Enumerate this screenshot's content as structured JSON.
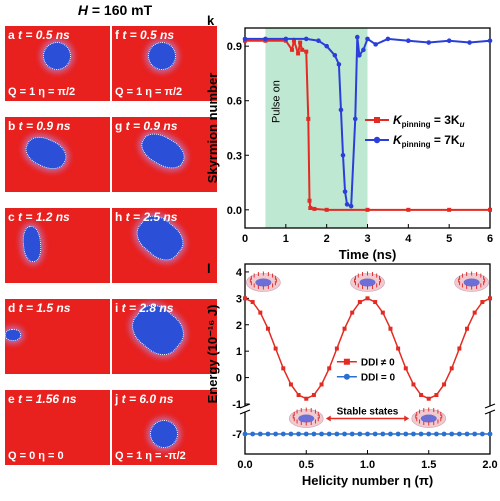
{
  "figure_title": "H = 160 mT",
  "field_label": "H",
  "field_value": "= 160 mT",
  "snapshots": [
    {
      "panel": "a",
      "time": "t = 0.5 ns",
      "q": "Q = 1  η = π/2"
    },
    {
      "panel": "f",
      "time": "t = 0.5 ns",
      "q": "Q = 1  η = π/2"
    },
    {
      "panel": "b",
      "time": "t = 0.9 ns",
      "q": ""
    },
    {
      "panel": "g",
      "time": "t = 0.9 ns",
      "q": ""
    },
    {
      "panel": "c",
      "time": "t = 1.2 ns",
      "q": ""
    },
    {
      "panel": "h",
      "time": "t = 2.5 ns",
      "q": ""
    },
    {
      "panel": "d",
      "time": "t = 1.5 ns",
      "q": ""
    },
    {
      "panel": "i",
      "time": "t = 2.8 ns",
      "q": ""
    },
    {
      "panel": "e",
      "time": "t = 1.56 ns",
      "q": "Q = 0  η = 0"
    },
    {
      "panel": "j",
      "time": "t = 6.0 ns",
      "q": "Q = 1  η = -π/2"
    }
  ],
  "colors": {
    "background_red": "#e8201e",
    "skyrmion_blue": "#2b4fd6",
    "pulse_green": "#bfe8d2",
    "series_red": "#e32b23",
    "series_blue": "#2a3fd9"
  },
  "chart_data": [
    {
      "type": "line",
      "panel": "k",
      "xlabel": "Time (ns)",
      "ylabel": "Skyrmion number",
      "xlim": [
        0,
        6
      ],
      "ylim": [
        -0.1,
        1.0
      ],
      "xticks": [
        0,
        1,
        2,
        3,
        4,
        5,
        6
      ],
      "yticks": [
        0.0,
        0.3,
        0.6,
        0.9
      ],
      "annotation": "Pulse on",
      "pulse_region": [
        0.5,
        3.0
      ],
      "legend_position": "center-right",
      "series": [
        {
          "name": "K_pinning = 3K_u",
          "name_main": "K",
          "name_sub": "pinning",
          "name_rest": " = 3K",
          "name_sub2": "u",
          "color": "#e32b23",
          "x": [
            0,
            0.5,
            1.0,
            1.15,
            1.2,
            1.3,
            1.35,
            1.4,
            1.5,
            1.55,
            1.58,
            1.6,
            1.7,
            2.0,
            3.0,
            4.0,
            5.0,
            6.0
          ],
          "y": [
            0.93,
            0.93,
            0.93,
            0.88,
            0.93,
            0.86,
            0.92,
            0.88,
            0.87,
            0.5,
            0.05,
            0.01,
            0.005,
            0.0,
            0.0,
            0.0,
            0.0,
            0.0
          ]
        },
        {
          "name": "K_pinning = 7K_u",
          "name_main": "K",
          "name_sub": "pinning",
          "name_rest": " = 7K",
          "name_sub2": "u",
          "color": "#2a3fd9",
          "x": [
            0,
            0.5,
            1.0,
            1.5,
            1.8,
            2.0,
            2.2,
            2.3,
            2.35,
            2.4,
            2.45,
            2.5,
            2.6,
            2.7,
            2.75,
            2.8,
            2.9,
            3.0,
            3.2,
            3.5,
            4.0,
            4.5,
            5.0,
            5.5,
            6.0
          ],
          "y": [
            0.94,
            0.94,
            0.94,
            0.94,
            0.93,
            0.9,
            0.85,
            0.8,
            0.55,
            0.3,
            0.1,
            0.03,
            0.02,
            0.5,
            0.95,
            0.85,
            0.88,
            0.94,
            0.91,
            0.94,
            0.93,
            0.92,
            0.93,
            0.92,
            0.93
          ]
        }
      ]
    },
    {
      "type": "line",
      "panel": "l",
      "xlabel": "Helicity number η (π)",
      "ylabel": "Energy (10⁻¹⁶ J)",
      "xlim": [
        0,
        2.0
      ],
      "ylim_upper": [
        -1,
        4.3
      ],
      "ylim_lower": [
        -7.3,
        -6.7
      ],
      "xticks": [
        0.0,
        0.5,
        1.0,
        1.5,
        2.0
      ],
      "yticks": [
        -7,
        -1,
        0,
        1,
        2,
        3,
        4
      ],
      "annotation": "Stable states",
      "legend_position": "center",
      "series": [
        {
          "name": "DDI ≠ 0",
          "color": "#e32b23",
          "x": [
            0.0,
            0.0625,
            0.125,
            0.1875,
            0.25,
            0.3125,
            0.375,
            0.4375,
            0.5,
            0.5625,
            0.625,
            0.6875,
            0.75,
            0.8125,
            0.875,
            0.9375,
            1.0,
            1.0625,
            1.125,
            1.1875,
            1.25,
            1.3125,
            1.375,
            1.4375,
            1.5,
            1.5625,
            1.625,
            1.6875,
            1.75,
            1.8125,
            1.875,
            1.9375,
            2.0
          ],
          "y": [
            3.0,
            2.86,
            2.46,
            1.85,
            1.1,
            0.35,
            -0.26,
            -0.66,
            -0.8,
            -0.66,
            -0.26,
            0.35,
            1.1,
            1.85,
            2.46,
            2.86,
            3.0,
            2.86,
            2.46,
            1.85,
            1.1,
            0.35,
            -0.26,
            -0.66,
            -0.8,
            -0.66,
            -0.26,
            0.35,
            1.1,
            1.85,
            2.46,
            2.86,
            3.0
          ]
        },
        {
          "name": "DDI = 0",
          "color": "#2a6fd1",
          "x": [
            0.0,
            0.0625,
            0.125,
            0.1875,
            0.25,
            0.3125,
            0.375,
            0.4375,
            0.5,
            0.5625,
            0.625,
            0.6875,
            0.75,
            0.8125,
            0.875,
            0.9375,
            1.0,
            1.0625,
            1.125,
            1.1875,
            1.25,
            1.3125,
            1.375,
            1.4375,
            1.5,
            1.5625,
            1.625,
            1.6875,
            1.75,
            1.8125,
            1.875,
            1.9375,
            2.0
          ],
          "y": [
            -7,
            -7,
            -7,
            -7,
            -7,
            -7,
            -7,
            -7,
            -7,
            -7,
            -7,
            -7,
            -7,
            -7,
            -7,
            -7,
            -7,
            -7,
            -7,
            -7,
            -7,
            -7,
            -7,
            -7,
            -7,
            -7,
            -7,
            -7,
            -7,
            -7,
            -7,
            -7,
            -7
          ]
        }
      ]
    }
  ]
}
